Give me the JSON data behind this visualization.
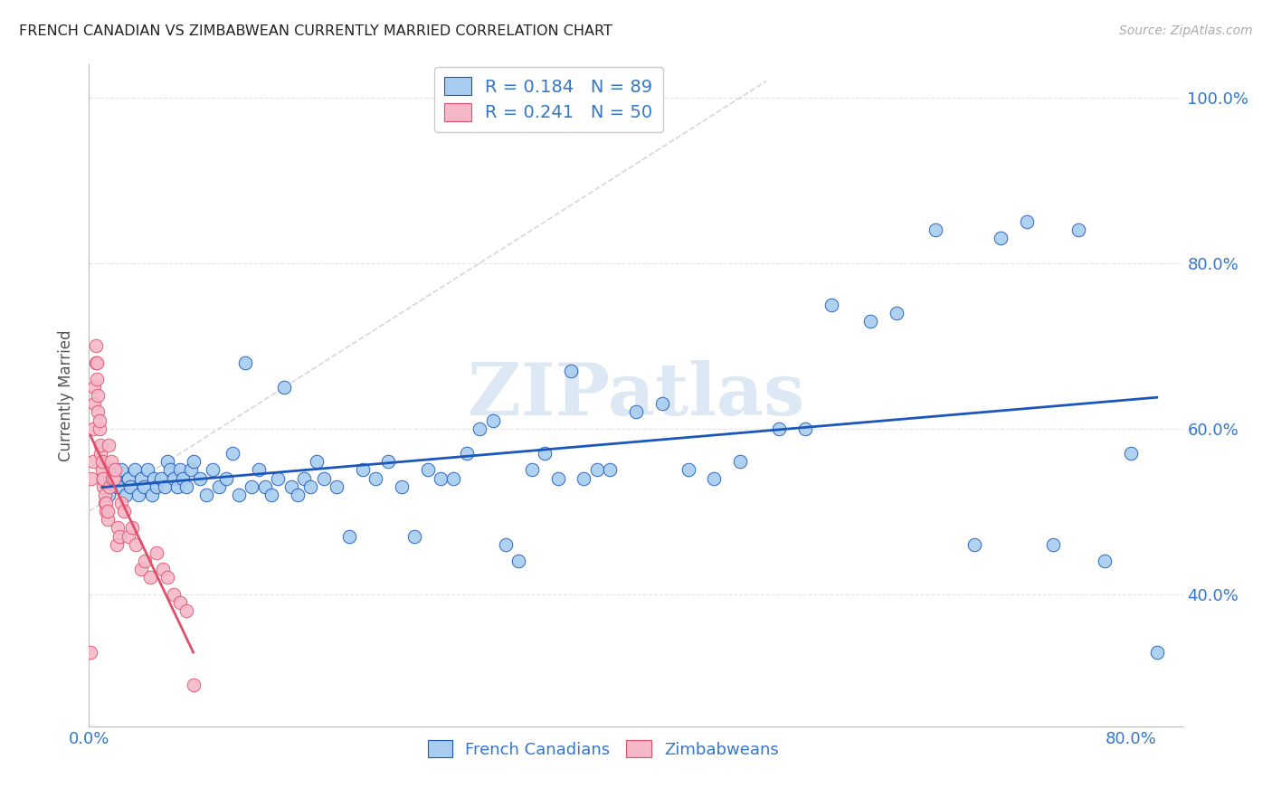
{
  "title": "FRENCH CANADIAN VS ZIMBABWEAN CURRENTLY MARRIED CORRELATION CHART",
  "source": "Source: ZipAtlas.com",
  "ylabel": "Currently Married",
  "background_color": "#ffffff",
  "grid_color": "#dddddd",
  "blue_color": "#a8cdf0",
  "blue_line_color": "#1a56bb",
  "pink_color": "#f5b8c8",
  "pink_line_color": "#e0506a",
  "diag_color": "#cccccc",
  "legend_text_color": "#3377cc",
  "axis_label_color": "#3377cc",
  "watermark": "ZIPatlas",
  "watermark_color": "#dde8f5",
  "R_blue": 0.184,
  "N_blue": 89,
  "R_pink": 0.241,
  "N_pink": 50,
  "blue_x": [
    0.01,
    0.015,
    0.018,
    0.02,
    0.022,
    0.025,
    0.028,
    0.03,
    0.032,
    0.035,
    0.038,
    0.04,
    0.042,
    0.045,
    0.048,
    0.05,
    0.052,
    0.055,
    0.058,
    0.06,
    0.062,
    0.065,
    0.068,
    0.07,
    0.072,
    0.075,
    0.078,
    0.08,
    0.085,
    0.09,
    0.095,
    0.1,
    0.105,
    0.11,
    0.115,
    0.12,
    0.125,
    0.13,
    0.135,
    0.14,
    0.145,
    0.15,
    0.155,
    0.16,
    0.165,
    0.17,
    0.175,
    0.18,
    0.19,
    0.2,
    0.21,
    0.22,
    0.23,
    0.24,
    0.25,
    0.26,
    0.27,
    0.28,
    0.29,
    0.3,
    0.31,
    0.32,
    0.33,
    0.34,
    0.35,
    0.36,
    0.37,
    0.38,
    0.39,
    0.4,
    0.42,
    0.44,
    0.46,
    0.48,
    0.5,
    0.53,
    0.55,
    0.57,
    0.6,
    0.62,
    0.65,
    0.68,
    0.7,
    0.72,
    0.74,
    0.76,
    0.78,
    0.8,
    0.82
  ],
  "blue_y": [
    0.54,
    0.52,
    0.55,
    0.54,
    0.53,
    0.55,
    0.52,
    0.54,
    0.53,
    0.55,
    0.52,
    0.54,
    0.53,
    0.55,
    0.52,
    0.54,
    0.53,
    0.54,
    0.53,
    0.56,
    0.55,
    0.54,
    0.53,
    0.55,
    0.54,
    0.53,
    0.55,
    0.56,
    0.54,
    0.52,
    0.55,
    0.53,
    0.54,
    0.57,
    0.52,
    0.68,
    0.53,
    0.55,
    0.53,
    0.52,
    0.54,
    0.65,
    0.53,
    0.52,
    0.54,
    0.53,
    0.56,
    0.54,
    0.53,
    0.47,
    0.55,
    0.54,
    0.56,
    0.53,
    0.47,
    0.55,
    0.54,
    0.54,
    0.57,
    0.6,
    0.61,
    0.46,
    0.44,
    0.55,
    0.57,
    0.54,
    0.67,
    0.54,
    0.55,
    0.55,
    0.62,
    0.63,
    0.55,
    0.54,
    0.56,
    0.6,
    0.6,
    0.75,
    0.73,
    0.74,
    0.84,
    0.46,
    0.83,
    0.85,
    0.46,
    0.84,
    0.44,
    0.57,
    0.33
  ],
  "pink_x": [
    0.001,
    0.002,
    0.003,
    0.003,
    0.004,
    0.004,
    0.005,
    0.005,
    0.006,
    0.006,
    0.007,
    0.007,
    0.008,
    0.008,
    0.009,
    0.009,
    0.01,
    0.01,
    0.011,
    0.011,
    0.012,
    0.012,
    0.013,
    0.013,
    0.014,
    0.014,
    0.015,
    0.016,
    0.017,
    0.018,
    0.019,
    0.02,
    0.021,
    0.022,
    0.023,
    0.025,
    0.027,
    0.03,
    0.033,
    0.036,
    0.04,
    0.043,
    0.047,
    0.052,
    0.057,
    0.06,
    0.065,
    0.07,
    0.075,
    0.08
  ],
  "pink_y": [
    0.33,
    0.54,
    0.56,
    0.6,
    0.63,
    0.65,
    0.68,
    0.7,
    0.66,
    0.68,
    0.62,
    0.64,
    0.6,
    0.61,
    0.57,
    0.58,
    0.55,
    0.56,
    0.53,
    0.54,
    0.51,
    0.52,
    0.5,
    0.51,
    0.49,
    0.5,
    0.58,
    0.53,
    0.56,
    0.54,
    0.54,
    0.55,
    0.46,
    0.48,
    0.47,
    0.51,
    0.5,
    0.47,
    0.48,
    0.46,
    0.43,
    0.44,
    0.42,
    0.45,
    0.43,
    0.42,
    0.4,
    0.39,
    0.38,
    0.29
  ],
  "xlim": [
    0.0,
    0.84
  ],
  "ylim": [
    0.24,
    1.04
  ],
  "y_ticks": [
    0.4,
    0.6,
    0.8,
    1.0
  ],
  "x_ticks": [
    0.0,
    0.8
  ]
}
